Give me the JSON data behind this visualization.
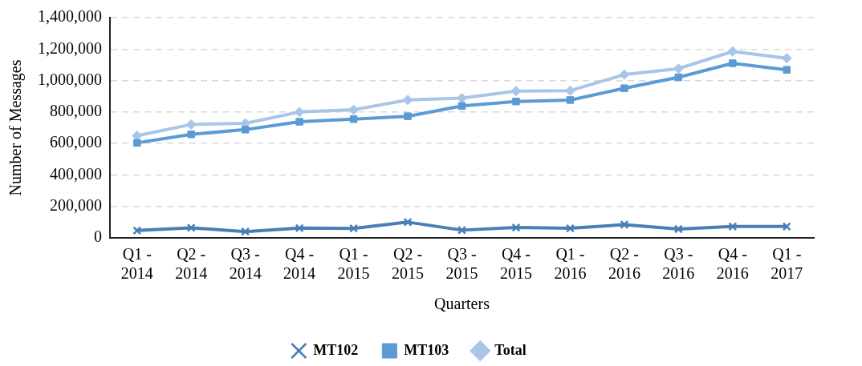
{
  "chart_data": {
    "type": "line",
    "xlabel": "Quarters",
    "ylabel": "Number of Messages",
    "categories": [
      "Q1 - 2014",
      "Q2 - 2014",
      "Q3 - 2014",
      "Q4 - 2014",
      "Q1 - 2015",
      "Q2 - 2015",
      "Q3 - 2015",
      "Q4 - 2015",
      "Q1 - 2016",
      "Q2 - 2016",
      "Q3 - 2016",
      "Q4 - 2016",
      "Q1 - 2017"
    ],
    "series": [
      {
        "name": "MT102",
        "color": "#4a7eb5",
        "marker": "cross",
        "values": [
          47000,
          64000,
          40000,
          62000,
          60000,
          100000,
          49000,
          66000,
          61000,
          84000,
          56000,
          72000,
          72000
        ]
      },
      {
        "name": "MT103",
        "color": "#5b9bd5",
        "marker": "square",
        "values": [
          604000,
          658000,
          688000,
          738000,
          755000,
          773000,
          839000,
          867000,
          876000,
          951000,
          1021000,
          1110000,
          1068000
        ]
      },
      {
        "name": "Total",
        "color": "#a9c5e8",
        "marker": "diamond",
        "values": [
          649000,
          721000,
          728000,
          800000,
          814000,
          877000,
          888000,
          933000,
          936000,
          1038000,
          1076000,
          1185000,
          1142000
        ]
      }
    ],
    "ylim": [
      0,
      1400000
    ],
    "yticks": [
      0,
      {
        "value": 200000,
        "label": "200,000"
      },
      {
        "value": 400000,
        "label": "400,000"
      },
      {
        "value": 600000,
        "label": "600,000"
      },
      {
        "value": 800000,
        "label": "800,000"
      },
      {
        "value": 1000000,
        "label": "1,000,000"
      },
      {
        "value": 1200000,
        "label": "1,200,000"
      },
      {
        "value": 1400000,
        "label": "1,400,000"
      }
    ],
    "grid": "y",
    "legend": "bottom",
    "line_style": "solid"
  }
}
